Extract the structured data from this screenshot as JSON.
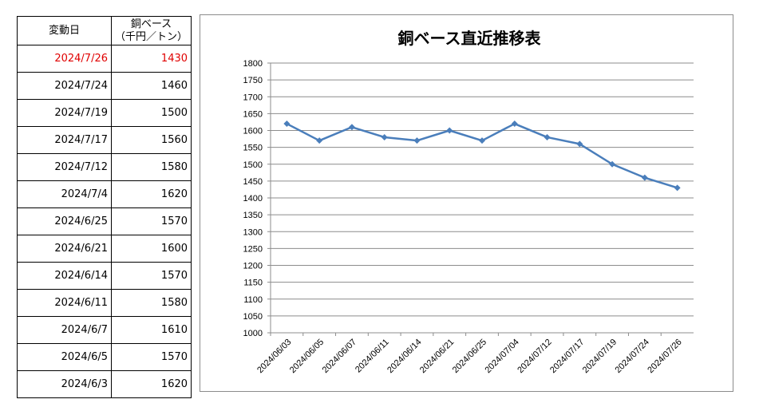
{
  "table": {
    "header_date": "変動日",
    "header_value_line1": "銅ベース",
    "header_value_line2": "（千円／トン）",
    "rows": [
      {
        "date": "2024/7/26",
        "value": "1430",
        "highlight": true
      },
      {
        "date": "2024/7/24",
        "value": "1460"
      },
      {
        "date": "2024/7/19",
        "value": "1500"
      },
      {
        "date": "2024/7/17",
        "value": "1560"
      },
      {
        "date": "2024/7/12",
        "value": "1580"
      },
      {
        "date": "2024/7/4",
        "value": "1620"
      },
      {
        "date": "2024/6/25",
        "value": "1570"
      },
      {
        "date": "2024/6/21",
        "value": "1600"
      },
      {
        "date": "2024/6/14",
        "value": "1570"
      },
      {
        "date": "2024/6/11",
        "value": "1580"
      },
      {
        "date": "2024/6/7",
        "value": "1610"
      },
      {
        "date": "2024/6/5",
        "value": "1570"
      },
      {
        "date": "2024/6/3",
        "value": "1620"
      }
    ],
    "highlight_color": "#e00000"
  },
  "chart_data": {
    "type": "line",
    "title": "銅ベース直近推移表",
    "categories": [
      "2024/06/03",
      "2024/06/05",
      "2024/06/07",
      "2024/06/11",
      "2024/06/14",
      "2024/06/21",
      "2024/06/25",
      "2024/07/04",
      "2024/07/12",
      "2024/07/17",
      "2024/07/19",
      "2024/07/24",
      "2024/07/26"
    ],
    "series": [
      {
        "values": [
          1620,
          1570,
          1610,
          1580,
          1570,
          1600,
          1570,
          1620,
          1580,
          1560,
          1500,
          1460,
          1430
        ],
        "color": "#4a7ebb",
        "marker": "diamond"
      }
    ],
    "ylim": [
      1000,
      1800
    ],
    "ystep": 50,
    "grid": true,
    "legend": "none"
  }
}
